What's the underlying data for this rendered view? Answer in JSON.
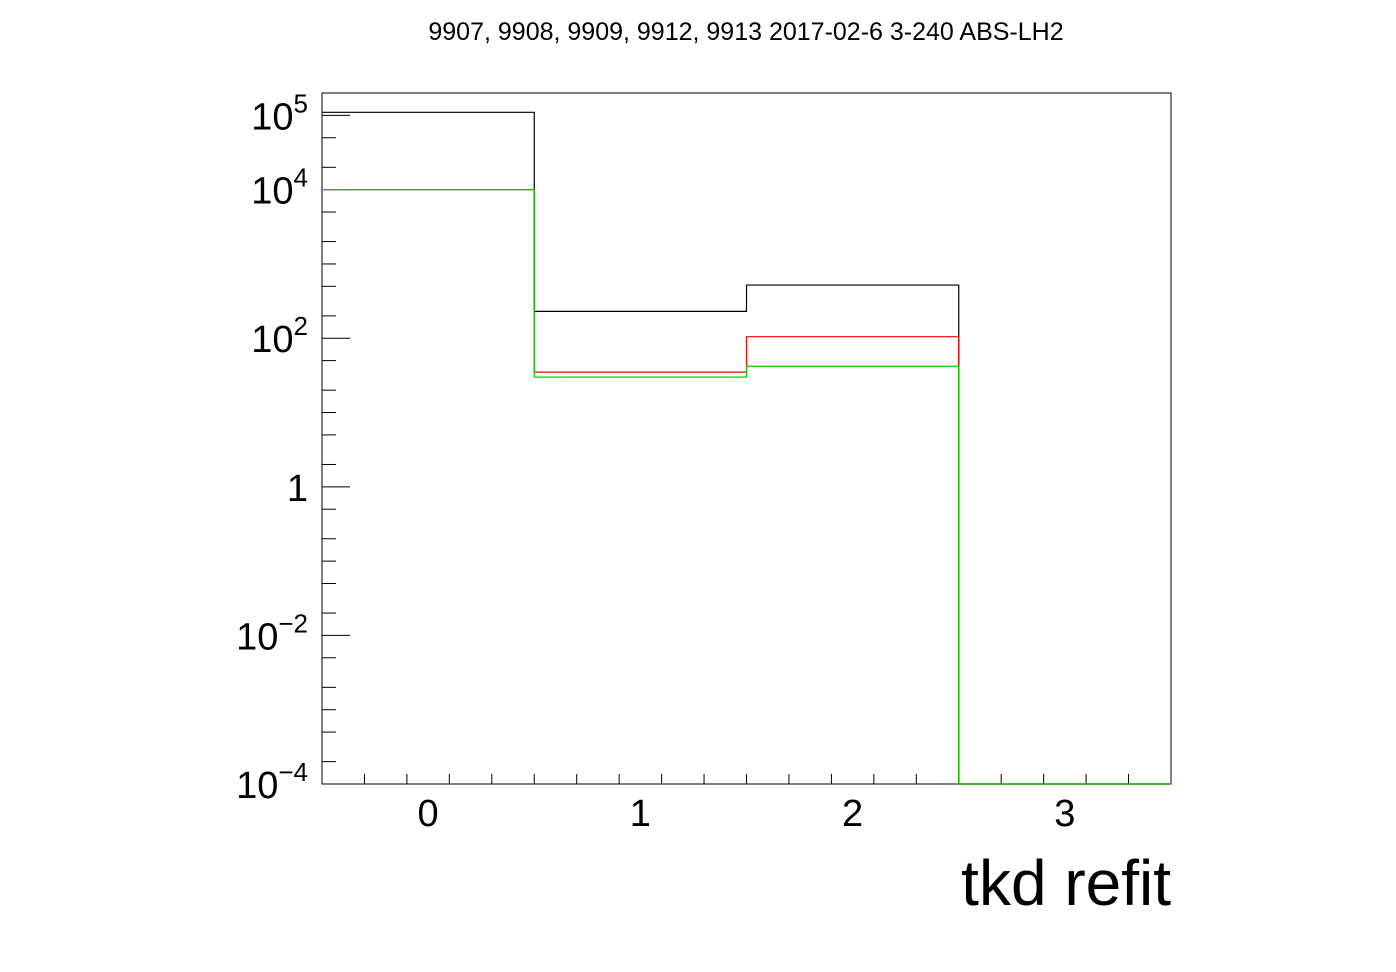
{
  "chart_data": {
    "type": "step-histogram",
    "title": "9907, 9908, 9909, 9912, 9913 2017-02-6 3-240 ABS-LH2",
    "xlabel": "tkd refit",
    "ylabel": "",
    "xlim": [
      -0.5,
      3.5
    ],
    "ylim": [
      0.0001,
      200000
    ],
    "log_y": true,
    "grid": false,
    "bin_edges": [
      -0.5,
      0.5,
      1.5,
      2.5,
      3.5
    ],
    "x_ticks": [
      "0",
      "1",
      "2",
      "3"
    ],
    "y_ticks": [
      {
        "value": 0.0001,
        "base": "10",
        "exp": "−4"
      },
      {
        "value": 0.01,
        "base": "10",
        "exp": "−2"
      },
      {
        "value": 1,
        "base": "1",
        "exp": ""
      },
      {
        "value": 100,
        "base": "10",
        "exp": "2"
      },
      {
        "value": 10000,
        "base": "10",
        "exp": "4"
      },
      {
        "value": 100000,
        "base": "10",
        "exp": "5"
      }
    ],
    "series": [
      {
        "color": "#000000",
        "values": [
          110000,
          230,
          520,
          0
        ]
      },
      {
        "color": "#ff0000",
        "values": [
          10000,
          35,
          105,
          0
        ]
      },
      {
        "color": "#00cc00",
        "values": [
          10000,
          30,
          42,
          0
        ]
      }
    ]
  }
}
